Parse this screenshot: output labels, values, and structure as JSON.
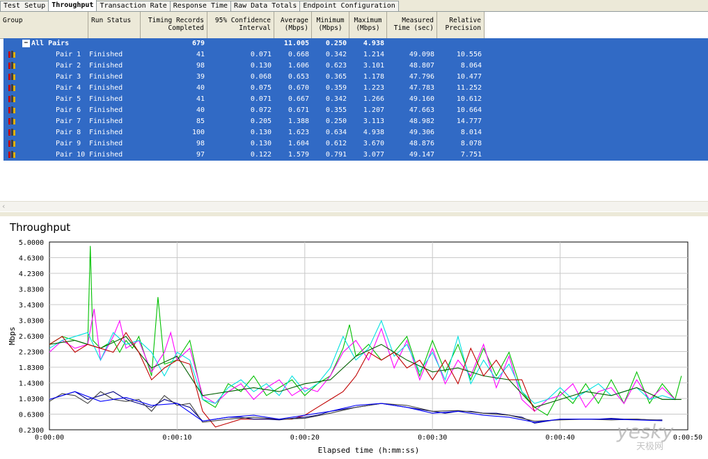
{
  "tabs": [
    "Test Setup",
    "Throughput",
    "Transaction Rate",
    "Response Time",
    "Raw Data Totals",
    "Endpoint Configuration"
  ],
  "active_tab": 1,
  "columns": [
    {
      "label": "Group",
      "w": 122,
      "align": "l"
    },
    {
      "label": "Run Status",
      "w": 75,
      "align": "l"
    },
    {
      "label": "Timing Records\nCompleted",
      "w": 96,
      "align": "r"
    },
    {
      "label": "95% Confidence\nInterval",
      "w": 96,
      "align": "r"
    },
    {
      "label": "Average\n(Mbps)",
      "w": 54,
      "align": "r"
    },
    {
      "label": "Minimum\n(Mbps)",
      "w": 54,
      "align": "c"
    },
    {
      "label": "Maximum\n(Mbps)",
      "w": 54,
      "align": "c"
    },
    {
      "label": "Measured\nTime (sec)",
      "w": 72,
      "align": "r"
    },
    {
      "label": "Relative\nPrecision",
      "w": 68,
      "align": "r"
    }
  ],
  "summary": {
    "group": "All Pairs",
    "records": "679",
    "average": "11.005",
    "minimum": "0.250",
    "maximum": "4.938"
  },
  "pairs": [
    {
      "group": "Pair 1",
      "status": "Finished",
      "records": "41",
      "ci": "0.071",
      "avg": "0.668",
      "min": "0.342",
      "max": "1.214",
      "time": "49.098",
      "prec": "10.556"
    },
    {
      "group": "Pair 2",
      "status": "Finished",
      "records": "98",
      "ci": "0.130",
      "avg": "1.606",
      "min": "0.623",
      "max": "3.101",
      "time": "48.807",
      "prec": "8.064"
    },
    {
      "group": "Pair 3",
      "status": "Finished",
      "records": "39",
      "ci": "0.068",
      "avg": "0.653",
      "min": "0.365",
      "max": "1.178",
      "time": "47.796",
      "prec": "10.477"
    },
    {
      "group": "Pair 4",
      "status": "Finished",
      "records": "40",
      "ci": "0.075",
      "avg": "0.670",
      "min": "0.359",
      "max": "1.223",
      "time": "47.783",
      "prec": "11.252"
    },
    {
      "group": "Pair 5",
      "status": "Finished",
      "records": "41",
      "ci": "0.071",
      "avg": "0.667",
      "min": "0.342",
      "max": "1.266",
      "time": "49.160",
      "prec": "10.612"
    },
    {
      "group": "Pair 6",
      "status": "Finished",
      "records": "40",
      "ci": "0.072",
      "avg": "0.671",
      "min": "0.355",
      "max": "1.207",
      "time": "47.663",
      "prec": "10.664"
    },
    {
      "group": "Pair 7",
      "status": "Finished",
      "records": "85",
      "ci": "0.205",
      "avg": "1.388",
      "min": "0.250",
      "max": "3.113",
      "time": "48.982",
      "prec": "14.777"
    },
    {
      "group": "Pair 8",
      "status": "Finished",
      "records": "100",
      "ci": "0.130",
      "avg": "1.623",
      "min": "0.634",
      "max": "4.938",
      "time": "49.306",
      "prec": "8.014"
    },
    {
      "group": "Pair 9",
      "status": "Finished",
      "records": "98",
      "ci": "0.130",
      "avg": "1.604",
      "min": "0.612",
      "max": "3.670",
      "time": "48.876",
      "prec": "8.078"
    },
    {
      "group": "Pair 10",
      "status": "Finished",
      "records": "97",
      "ci": "0.122",
      "avg": "1.579",
      "min": "0.791",
      "max": "3.077",
      "time": "49.147",
      "prec": "7.751"
    }
  ],
  "colors": {
    "selection": "#316ac5",
    "header": "#ece9d8",
    "grid": "#c0c0c0"
  },
  "watermark": {
    "text": "yesky",
    "sub": "天极网"
  },
  "chart_data": {
    "type": "line",
    "title": "Throughput",
    "xlabel": "Elapsed time (h:mm:ss)",
    "ylabel": "Mbps",
    "ylim": [
      0.23,
      5.0
    ],
    "xlim_seconds": [
      0,
      50
    ],
    "y_ticks": [
      "5.0000",
      "4.6300",
      "4.2300",
      "3.8300",
      "3.4300",
      "3.0300",
      "2.6300",
      "2.2300",
      "1.8300",
      "1.4300",
      "1.0300",
      "0.6300",
      "0.2300"
    ],
    "x_ticks": [
      "0:00:00",
      "0:00:10",
      "0:00:20",
      "0:00:30",
      "0:00:40",
      "0:00:50"
    ],
    "grid": true,
    "series": [
      {
        "color": "#00c000",
        "x": [
          0,
          1,
          2,
          3,
          3.2,
          3.4,
          4,
          5,
          5.5,
          6,
          6.5,
          7,
          8,
          8.5,
          9,
          10,
          11,
          12,
          13,
          14,
          15,
          16,
          17,
          18,
          19,
          20,
          21,
          22,
          23,
          23.5,
          24,
          25,
          26,
          27,
          28,
          29,
          30,
          31,
          32,
          33,
          34,
          35,
          36,
          37,
          38,
          39,
          40,
          41,
          42,
          43,
          44,
          45,
          46,
          47,
          48,
          49,
          49.5
        ],
        "y": [
          2.4,
          2.6,
          2.5,
          2.4,
          4.9,
          2.5,
          2.3,
          2.5,
          2.2,
          2.5,
          2.3,
          2.6,
          1.6,
          3.6,
          1.9,
          2.0,
          2.5,
          1.0,
          0.8,
          1.4,
          1.2,
          1.6,
          1.1,
          1.3,
          1.5,
          1.1,
          1.4,
          1.6,
          2.3,
          2.9,
          2.1,
          2.4,
          2.0,
          2.2,
          2.6,
          1.6,
          2.5,
          1.7,
          2.4,
          1.5,
          2.3,
          1.6,
          2.2,
          1.2,
          0.8,
          0.6,
          1.2,
          0.9,
          1.4,
          0.9,
          1.5,
          0.9,
          1.7,
          0.9,
          1.4,
          1.0,
          1.6
        ]
      },
      {
        "color": "#ff00ff",
        "x": [
          0,
          1,
          2,
          3,
          3.5,
          4,
          5,
          5.5,
          6,
          7,
          8,
          9,
          9.5,
          10,
          11,
          12,
          13,
          14,
          15,
          16,
          17,
          18,
          19,
          20,
          21,
          22,
          23,
          24,
          25,
          26,
          27,
          28,
          29,
          30,
          31,
          32,
          33,
          34,
          35,
          36,
          37,
          38,
          39,
          40,
          41,
          42,
          43,
          44,
          45,
          46,
          47,
          48,
          49
        ],
        "y": [
          2.2,
          2.5,
          2.3,
          2.4,
          3.3,
          2.0,
          2.6,
          3.0,
          2.3,
          2.5,
          1.7,
          2.2,
          2.7,
          2.0,
          2.3,
          1.1,
          0.9,
          1.2,
          1.4,
          1.0,
          1.3,
          1.5,
          1.1,
          1.3,
          1.2,
          1.6,
          2.2,
          2.5,
          2.0,
          2.8,
          1.8,
          2.5,
          1.5,
          2.3,
          1.4,
          2.0,
          1.6,
          2.4,
          1.3,
          2.1,
          1.0,
          0.7,
          1.0,
          1.1,
          1.4,
          0.8,
          1.2,
          1.3,
          0.9,
          1.5,
          1.0,
          1.3,
          1.0
        ]
      },
      {
        "color": "#00e0e0",
        "x": [
          0,
          1,
          2,
          3,
          4,
          5,
          6,
          7,
          8,
          9,
          10,
          11,
          12,
          13,
          14,
          15,
          16,
          17,
          18,
          19,
          20,
          21,
          22,
          23,
          24,
          25,
          26,
          27,
          28,
          29,
          30,
          31,
          32,
          33,
          34,
          35,
          36,
          37,
          38,
          39,
          40,
          41,
          42,
          43,
          44,
          45,
          46,
          47,
          48,
          49
        ],
        "y": [
          2.3,
          2.5,
          2.6,
          2.7,
          2.0,
          2.7,
          2.4,
          2.5,
          2.2,
          1.6,
          2.2,
          2.0,
          1.0,
          0.9,
          1.3,
          1.5,
          1.2,
          1.4,
          1.1,
          1.6,
          1.2,
          1.4,
          1.8,
          2.6,
          2.0,
          2.3,
          3.0,
          2.1,
          2.4,
          1.7,
          2.2,
          1.5,
          2.6,
          1.4,
          2.0,
          1.5,
          1.9,
          1.2,
          0.9,
          1.0,
          1.3,
          1.0,
          1.2,
          1.4,
          1.1,
          1.2,
          1.3,
          1.0,
          1.1,
          1.0
        ]
      },
      {
        "color": "#006000",
        "x": [
          0,
          2,
          4,
          6,
          8,
          10,
          12,
          14,
          16,
          18,
          20,
          22,
          24,
          26,
          28,
          30,
          32,
          34,
          36,
          38,
          40,
          42,
          44,
          46,
          48,
          49.5
        ],
        "y": [
          2.4,
          2.5,
          2.3,
          2.6,
          1.8,
          2.1,
          1.1,
          1.2,
          1.3,
          1.2,
          1.4,
          1.5,
          2.1,
          2.4,
          2.0,
          1.7,
          1.8,
          1.6,
          1.5,
          0.8,
          1.0,
          1.2,
          1.1,
          1.3,
          1.0,
          1.0
        ]
      },
      {
        "color": "#c00000",
        "x": [
          0,
          1,
          2,
          3,
          4,
          5,
          6,
          7,
          8,
          9,
          10,
          11,
          12,
          13,
          14,
          15,
          16,
          17,
          18,
          19,
          20,
          21,
          22,
          23,
          24,
          25,
          26,
          27,
          28,
          29,
          30,
          31,
          32,
          33,
          34,
          35,
          36,
          37,
          38
        ],
        "y": [
          2.4,
          2.6,
          2.2,
          2.4,
          2.3,
          2.2,
          2.7,
          2.2,
          1.5,
          1.8,
          2.0,
          1.9,
          0.7,
          0.3,
          0.4,
          0.5,
          0.5,
          0.5,
          0.5,
          0.5,
          0.6,
          0.8,
          1.0,
          1.2,
          1.6,
          2.2,
          2.0,
          2.2,
          1.8,
          2.0,
          1.5,
          2.0,
          1.4,
          2.3,
          1.6,
          2.0,
          1.5,
          1.5,
          0.7
        ]
      },
      {
        "color": "#000080",
        "x": [
          0,
          1,
          2,
          3,
          4,
          5,
          6,
          7,
          8,
          9,
          10,
          11,
          12,
          13,
          14,
          15,
          16,
          17,
          18,
          19,
          20,
          21,
          22,
          23,
          24,
          25,
          26,
          27,
          28,
          29,
          30,
          31,
          32,
          33,
          34,
          35,
          36,
          37,
          38,
          39,
          40,
          41,
          42,
          43,
          44,
          45,
          46,
          47,
          48
        ],
        "y": [
          1.0,
          1.1,
          1.2,
          1.0,
          1.1,
          1.2,
          1.0,
          0.9,
          0.8,
          1.0,
          0.9,
          0.8,
          0.45,
          0.5,
          0.55,
          0.55,
          0.5,
          0.5,
          0.48,
          0.52,
          0.55,
          0.6,
          0.7,
          0.75,
          0.8,
          0.85,
          0.9,
          0.85,
          0.8,
          0.75,
          0.7,
          0.65,
          0.7,
          0.7,
          0.65,
          0.65,
          0.6,
          0.55,
          0.4,
          0.45,
          0.5,
          0.5,
          0.5,
          0.5,
          0.52,
          0.5,
          0.5,
          0.48,
          0.48
        ]
      },
      {
        "color": "#404040",
        "x": [
          0,
          1,
          2,
          3,
          4,
          5,
          6,
          7,
          8,
          9,
          10,
          11,
          12,
          14,
          16,
          18,
          20,
          22,
          24,
          26,
          28,
          30,
          32,
          34,
          36,
          38,
          40,
          42,
          44,
          46,
          48
        ],
        "y": [
          0.95,
          1.15,
          1.1,
          0.9,
          1.2,
          1.0,
          0.95,
          1.0,
          0.7,
          1.1,
          0.85,
          0.9,
          0.42,
          0.5,
          0.55,
          0.5,
          0.52,
          0.65,
          0.8,
          0.9,
          0.85,
          0.7,
          0.72,
          0.65,
          0.6,
          0.45,
          0.48,
          0.5,
          0.48,
          0.5,
          0.47
        ]
      },
      {
        "color": "#0000ff",
        "x": [
          0,
          2,
          4,
          6,
          8,
          10,
          12,
          14,
          16,
          18,
          20,
          22,
          24,
          26,
          28,
          30,
          32,
          34,
          36,
          38,
          40,
          42,
          44,
          46,
          48
        ],
        "y": [
          1.0,
          1.2,
          0.95,
          1.05,
          0.85,
          0.9,
          0.45,
          0.55,
          0.6,
          0.5,
          0.6,
          0.7,
          0.85,
          0.9,
          0.8,
          0.65,
          0.7,
          0.6,
          0.55,
          0.42,
          0.5,
          0.5,
          0.5,
          0.48,
          0.46
        ]
      }
    ]
  }
}
